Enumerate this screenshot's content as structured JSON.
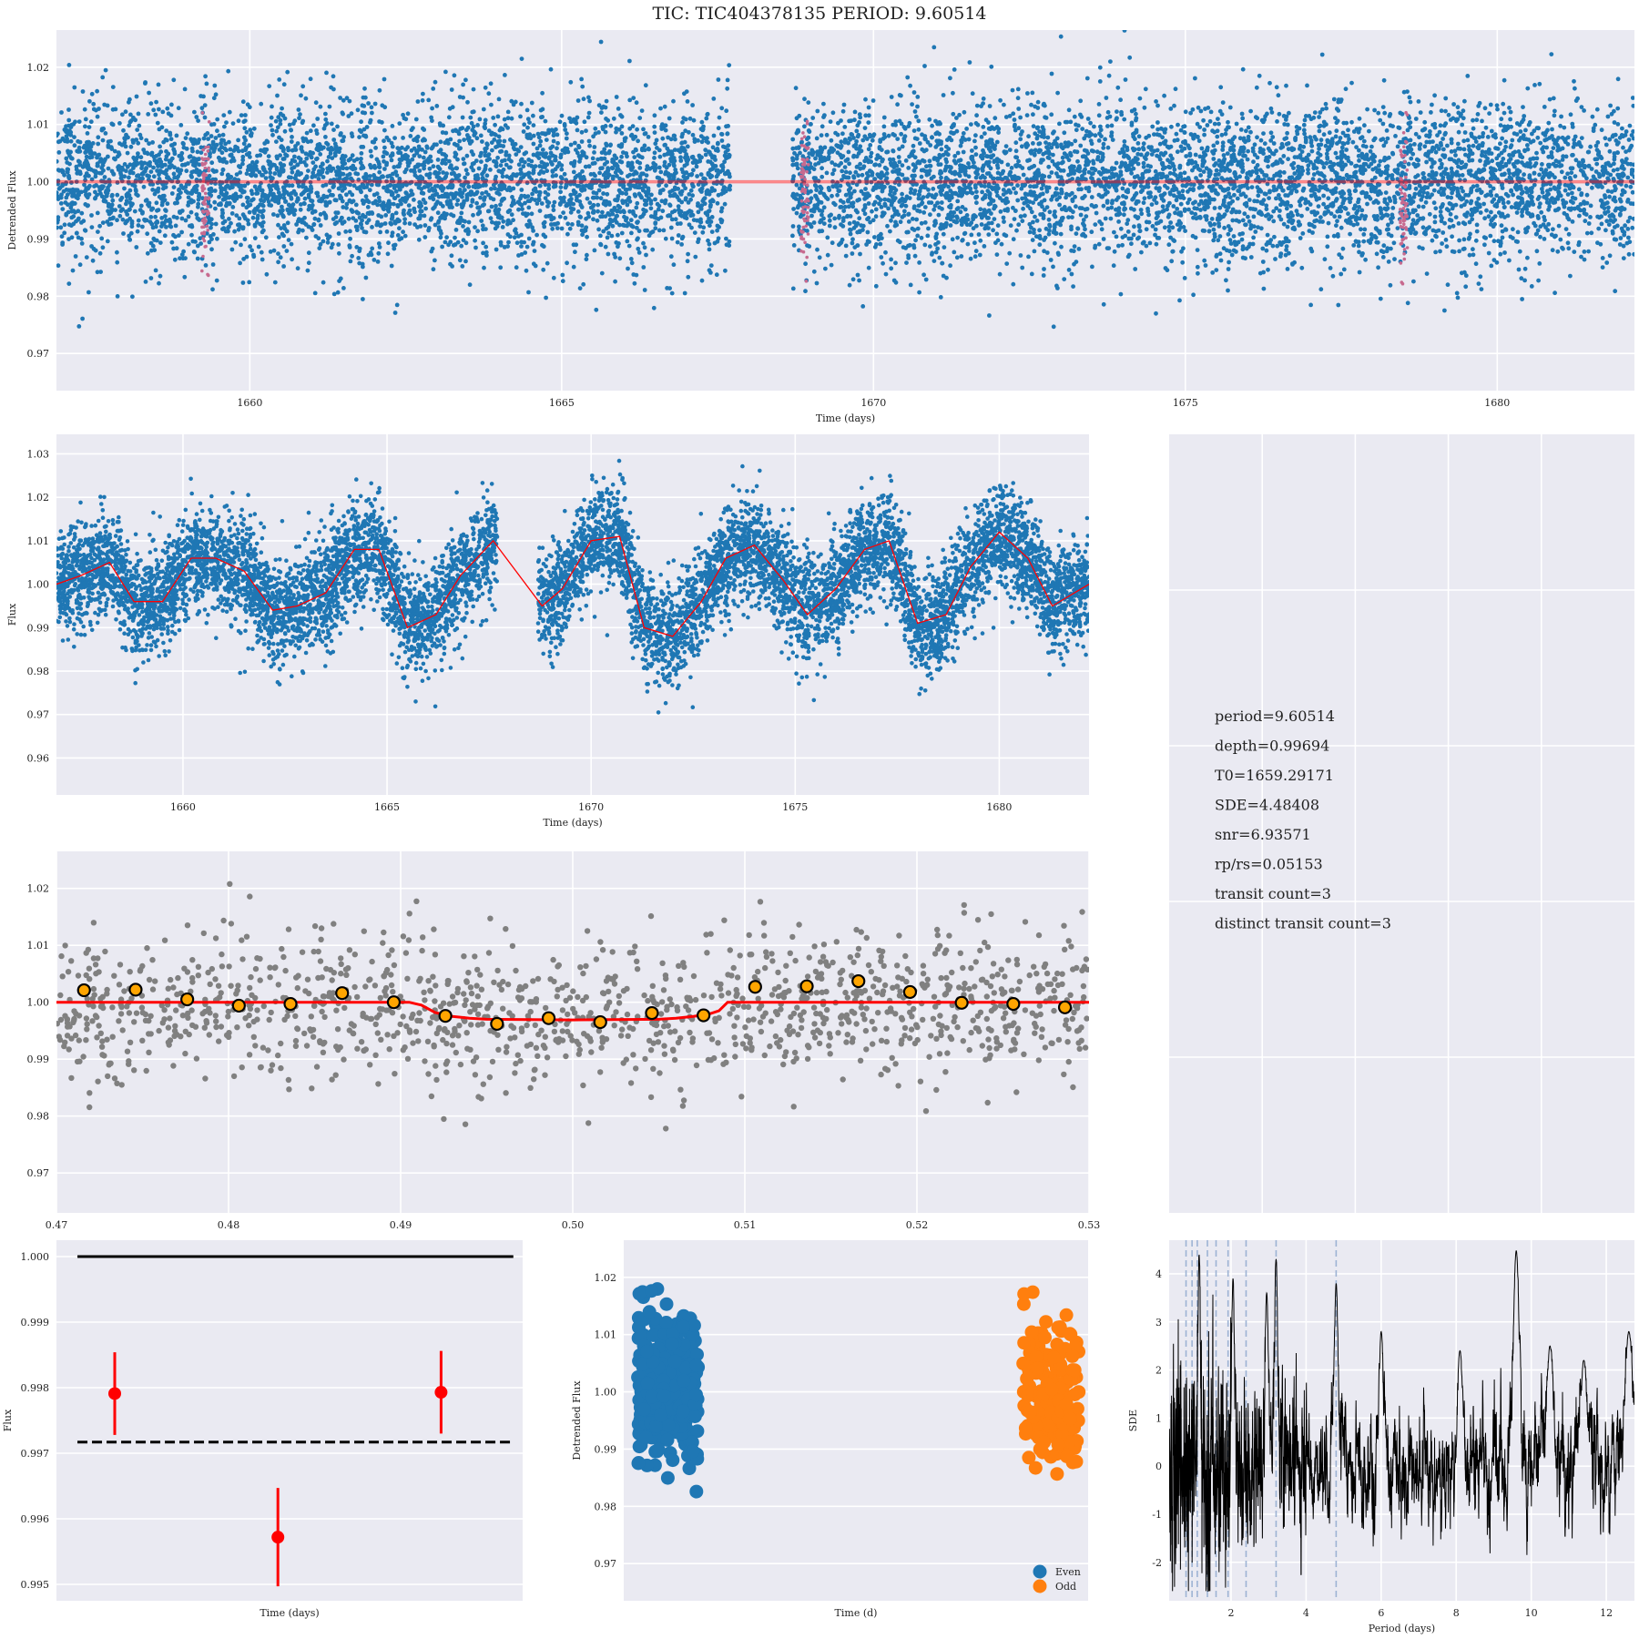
{
  "figure": {
    "title": "TIC: TIC404378135 PERIOD: 9.60514",
    "background": "#ffffff",
    "axes_facecolor": "#eaeaf2",
    "grid_color": "#ffffff"
  },
  "colors": {
    "blue": "#1f77b4",
    "red": "#ff0000",
    "gray": "#808080",
    "orange": "#ffa500",
    "odd_orange": "#ff7f0e",
    "periodogram": "#000000",
    "dashed_lines": "#9db3d4"
  },
  "chart_data": [
    {
      "id": "detrended",
      "type": "scatter",
      "xlabel": "Time (days)",
      "ylabel": "Detrended Flux",
      "xlim": [
        1656.9,
        1682.2
      ],
      "ylim": [
        0.9635,
        1.0265
      ],
      "xticks": [
        1660,
        1665,
        1670,
        1675,
        1680
      ],
      "yticks": [
        0.97,
        0.98,
        0.99,
        1.0,
        1.01,
        1.02
      ],
      "ytick_labels": [
        "0.97",
        "0.98",
        "0.99",
        "1.00",
        "1.01",
        "1.02"
      ],
      "gap": [
        1667.7,
        1668.7
      ],
      "scatter_sigma": 0.007,
      "baseline": 1.0,
      "transit_epochs": [
        1659.29171,
        1668.89685,
        1678.50199
      ],
      "transit_depth": 0.99694
    },
    {
      "id": "raw",
      "type": "scatter",
      "xlabel": "Time (days)",
      "ylabel": "Flux",
      "xlim": [
        1656.9,
        1682.2
      ],
      "ylim": [
        0.9515,
        1.0345
      ],
      "xticks": [
        1660,
        1665,
        1670,
        1675,
        1680
      ],
      "yticks": [
        0.96,
        0.97,
        0.98,
        0.99,
        1.0,
        1.01,
        1.02,
        1.03
      ],
      "ytick_labels": [
        "0.96",
        "0.97",
        "0.98",
        "0.99",
        "1.00",
        "1.01",
        "1.02",
        "1.03"
      ],
      "gap": [
        1667.7,
        1668.7
      ],
      "trend_x": [
        1656.9,
        1657.5,
        1658.2,
        1658.8,
        1659.5,
        1660.2,
        1660.8,
        1661.5,
        1662.2,
        1662.8,
        1663.5,
        1664.2,
        1664.8,
        1665.5,
        1666.2,
        1666.8,
        1667.6,
        1668.8,
        1669.3,
        1670.0,
        1670.7,
        1671.3,
        1672.0,
        1672.7,
        1673.3,
        1674.0,
        1674.7,
        1675.3,
        1676.0,
        1676.7,
        1677.3,
        1678.0,
        1678.7,
        1679.3,
        1680.0,
        1680.7,
        1681.3,
        1682.2
      ],
      "trend_y": [
        1.0,
        1.002,
        1.005,
        0.996,
        0.996,
        1.006,
        1.006,
        1.003,
        0.994,
        0.995,
        0.998,
        1.008,
        1.008,
        0.99,
        0.993,
        1.002,
        1.01,
        0.995,
        0.999,
        1.01,
        1.011,
        0.99,
        0.988,
        0.996,
        1.006,
        1.009,
        1.001,
        0.993,
        0.999,
        1.008,
        1.01,
        0.991,
        0.993,
        1.004,
        1.012,
        1.006,
        0.995,
        1.0
      ],
      "scatter_sigma": 0.006
    },
    {
      "id": "folded",
      "type": "scatter",
      "xlabel": "",
      "ylabel": "",
      "xlim": [
        0.47,
        0.53
      ],
      "ylim": [
        0.963,
        1.0265
      ],
      "xticks": [
        0.47,
        0.48,
        0.49,
        0.5,
        0.51,
        0.52,
        0.53
      ],
      "xtick_labels": [
        "0.47",
        "0.48",
        "0.49",
        "0.50",
        "0.51",
        "0.52",
        "0.53"
      ],
      "yticks": [
        0.97,
        0.98,
        0.99,
        1.0,
        1.01,
        1.02
      ],
      "ytick_labels": [
        "0.97",
        "0.98",
        "0.99",
        "1.00",
        "1.01",
        "1.02"
      ],
      "model_x": [
        0.47,
        0.4905,
        0.4912,
        0.492,
        0.493,
        0.494,
        0.495,
        0.5,
        0.505,
        0.506,
        0.507,
        0.508,
        0.5085,
        0.509,
        0.53
      ],
      "model_y": [
        1.0,
        1.0,
        0.9995,
        0.9982,
        0.9975,
        0.9972,
        0.997,
        0.9969,
        0.997,
        0.9972,
        0.9975,
        0.998,
        0.9985,
        1.0,
        1.0
      ],
      "binned_x": [
        0.4716,
        0.4746,
        0.4776,
        0.4806,
        0.4836,
        0.4866,
        0.4896,
        0.4926,
        0.4956,
        0.4986,
        0.5016,
        0.5046,
        0.5076,
        0.5106,
        0.5136,
        0.5166,
        0.5196,
        0.5226,
        0.5256,
        0.5286
      ],
      "binned_y": [
        1.0021,
        1.0022,
        1.0005,
        0.9994,
        0.9997,
        1.0016,
        1.0,
        0.9976,
        0.9962,
        0.9972,
        0.9965,
        0.9981,
        0.9977,
        1.0027,
        1.0028,
        1.0037,
        1.0018,
        0.9999,
        0.9997,
        0.9991
      ],
      "scatter_sigma": 0.0065
    },
    {
      "id": "transit_depths",
      "type": "scatter",
      "xlabel": "Time (days)",
      "ylabel": "Flux",
      "xlim": [
        0.0,
        4.0
      ],
      "ylim": [
        0.99475,
        1.00025
      ],
      "yticks": [
        0.995,
        0.996,
        0.997,
        0.998,
        0.999,
        1.0
      ],
      "ytick_labels": [
        "0.995",
        "0.996",
        "0.997",
        "0.998",
        "0.999",
        "1.000"
      ],
      "points": [
        {
          "x": 0.5,
          "y": 0.99791,
          "err": 0.00063
        },
        {
          "x": 1.9,
          "y": 0.99572,
          "err": 0.00075
        },
        {
          "x": 3.3,
          "y": 0.99793,
          "err": 0.00063
        }
      ],
      "solid_line": 1.0,
      "solid_line_x": [
        0.18,
        3.92
      ],
      "dashed_line": 0.99717,
      "dashed_line_x": [
        0.18,
        3.92
      ]
    },
    {
      "id": "even_odd",
      "type": "scatter",
      "xlabel": "Time (d)",
      "ylabel": "Detrended Flux",
      "xlim": [
        0.0,
        10.0
      ],
      "ylim": [
        0.9635,
        1.0265
      ],
      "yticks": [
        0.97,
        0.98,
        0.99,
        1.0,
        1.01,
        1.02
      ],
      "ytick_labels": [
        "0.97",
        "0.98",
        "0.99",
        "1.00",
        "1.01",
        "1.02"
      ],
      "series": [
        {
          "name": "Even",
          "center": 1.0,
          "x_range": [
            0.3,
            1.6
          ],
          "sigma": 0.0065
        },
        {
          "name": "Odd",
          "center": 0.999,
          "x_range": [
            8.6,
            9.8
          ],
          "sigma": 0.0065
        }
      ]
    },
    {
      "id": "periodogram",
      "type": "line",
      "xlabel": "Period (days)",
      "ylabel": "SDE",
      "xlim": [
        0.35,
        12.75
      ],
      "ylim": [
        -2.8,
        4.7
      ],
      "xticks": [
        2,
        4,
        6,
        8,
        10,
        12
      ],
      "yticks": [
        -2,
        -1,
        0,
        1,
        2,
        3,
        4
      ],
      "peaks": [
        {
          "period": 1.15,
          "sde": 4.4
        },
        {
          "period": 2.05,
          "sde": 3.9
        },
        {
          "period": 2.95,
          "sde": 3.6
        },
        {
          "period": 3.2,
          "sde": 4.3
        },
        {
          "period": 4.8,
          "sde": 3.8
        },
        {
          "period": 6.0,
          "sde": 2.8
        },
        {
          "period": 8.1,
          "sde": 2.4
        },
        {
          "period": 9.6,
          "sde": 4.48
        },
        {
          "period": 10.5,
          "sde": 2.5
        },
        {
          "period": 11.4,
          "sde": 2.2
        },
        {
          "period": 12.6,
          "sde": 2.8
        }
      ],
      "harmonic_lines": [
        0.8,
        0.96,
        1.1,
        1.37,
        1.6,
        1.92,
        2.4,
        3.2,
        4.8
      ]
    }
  ],
  "stats": [
    "period=9.60514",
    "depth=0.99694",
    "T0=1659.29171",
    "SDE=4.48408",
    "snr=6.93571",
    "rp/rs=0.05153",
    "transit count=3",
    "distinct transit count=3"
  ],
  "legend": {
    "even_label": "Even",
    "odd_label": "Odd"
  }
}
